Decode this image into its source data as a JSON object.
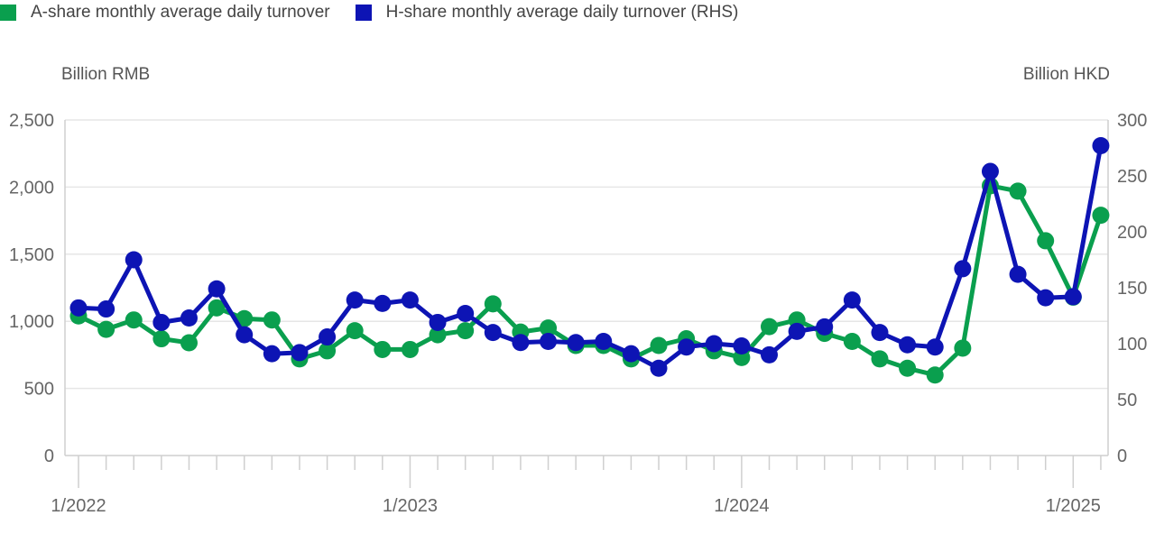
{
  "legend": [
    {
      "label": "A-share monthly average daily turnover",
      "color": "#0a9f4e"
    },
    {
      "label": "H-share monthly average daily turnover (RHS)",
      "color": "#0d14b4"
    }
  ],
  "chart_data": {
    "type": "line",
    "left_axis_label": "Billion RMB",
    "right_axis_label": "Billion HKD",
    "y_left": {
      "min": 0,
      "max": 2500,
      "ticks": [
        "0",
        "500",
        "1,000",
        "1,500",
        "2,000",
        "2,500"
      ]
    },
    "y_right": {
      "min": 0,
      "max": 300,
      "ticks": [
        "0",
        "50",
        "100",
        "150",
        "200",
        "250",
        "300"
      ]
    },
    "x_tick_labels": [
      {
        "label": "1/2022",
        "index": 0
      },
      {
        "label": "1/2023",
        "index": 12
      },
      {
        "label": "1/2024",
        "index": 24
      },
      {
        "label": "1/2025",
        "index": 36
      }
    ],
    "x": [
      "2022-01",
      "2022-02",
      "2022-03",
      "2022-04",
      "2022-05",
      "2022-06",
      "2022-07",
      "2022-08",
      "2022-09",
      "2022-10",
      "2022-11",
      "2022-12",
      "2023-01",
      "2023-02",
      "2023-03",
      "2023-04",
      "2023-05",
      "2023-06",
      "2023-07",
      "2023-08",
      "2023-09",
      "2023-10",
      "2023-11",
      "2023-12",
      "2024-01",
      "2024-02",
      "2024-03",
      "2024-04",
      "2024-05",
      "2024-06",
      "2024-07",
      "2024-08",
      "2024-09",
      "2024-10",
      "2024-11",
      "2024-12",
      "2025-01",
      "2025-02"
    ],
    "grid": true,
    "legend_position": "top-left",
    "series": [
      {
        "name": "A-share monthly average daily turnover",
        "axis": "left",
        "color": "#0a9f4e",
        "values": [
          1040,
          940,
          1010,
          870,
          840,
          1100,
          1020,
          1010,
          720,
          780,
          930,
          790,
          790,
          900,
          930,
          1130,
          920,
          950,
          820,
          820,
          720,
          820,
          870,
          780,
          730,
          960,
          1010,
          910,
          850,
          720,
          650,
          600,
          800,
          2010,
          1970,
          1600,
          1180,
          1790
        ]
      },
      {
        "name": "H-share monthly average daily turnover (RHS)",
        "axis": "right",
        "color": "#0d14b4",
        "values": [
          132,
          131,
          175,
          119,
          123,
          149,
          108,
          91,
          92,
          106,
          139,
          136,
          139,
          119,
          127,
          110,
          101,
          102,
          101,
          102,
          91,
          78,
          97,
          100,
          98,
          90,
          111,
          115,
          139,
          110,
          99,
          97,
          167,
          254,
          162,
          141,
          142,
          277
        ]
      }
    ]
  }
}
